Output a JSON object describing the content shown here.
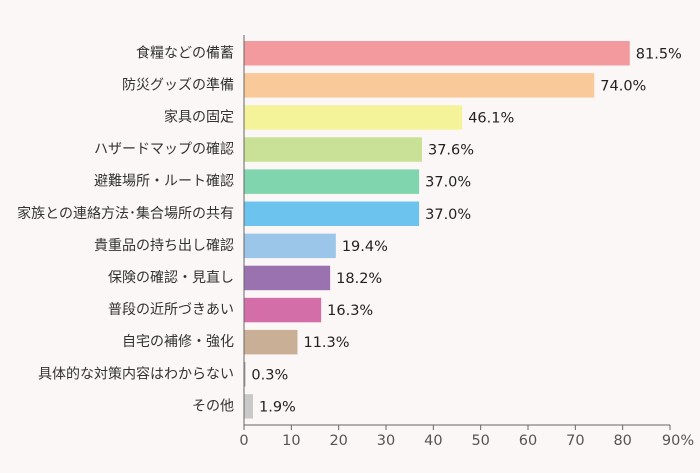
{
  "chart_data": {
    "type": "bar",
    "orientation": "horizontal",
    "categories": [
      "食糧などの備蓄",
      "防災グッズの準備",
      "家具の固定",
      "ハザードマップの確認",
      "避難場所・ルート確認",
      "家族との連絡方法･集合場所の共有",
      "貴重品の持ち出し確認",
      "保険の確認・見直し",
      "普段の近所づきあい",
      "自宅の補修・強化",
      "具体的な対策内容はわからない",
      "その他"
    ],
    "values": [
      81.5,
      74.0,
      46.1,
      37.6,
      37.0,
      37.0,
      19.4,
      18.2,
      16.3,
      11.3,
      0.3,
      1.9
    ],
    "value_labels": [
      "81.5%",
      "74.0%",
      "46.1%",
      "37.6%",
      "37.0%",
      "37.0%",
      "19.4%",
      "18.2%",
      "16.3%",
      "11.3%",
      "0.3%",
      "1.9%"
    ],
    "colors": [
      "#f29a9d",
      "#f9c99a",
      "#f5f39a",
      "#c9e196",
      "#80d5ae",
      "#6cc4ee",
      "#9bc6ea",
      "#9b72b0",
      "#d46ea9",
      "#c9af96",
      "#a8a0a0",
      "#c9c9c9"
    ],
    "xlim": [
      0,
      90
    ],
    "xticks": [
      "0",
      "10",
      "20",
      "30",
      "40",
      "50",
      "60",
      "70",
      "80",
      "90%"
    ],
    "xtick_values": [
      0,
      10,
      20,
      30,
      40,
      50,
      60,
      70,
      80,
      90
    ],
    "grid": false,
    "title": "",
    "xlabel": "",
    "ylabel": ""
  }
}
